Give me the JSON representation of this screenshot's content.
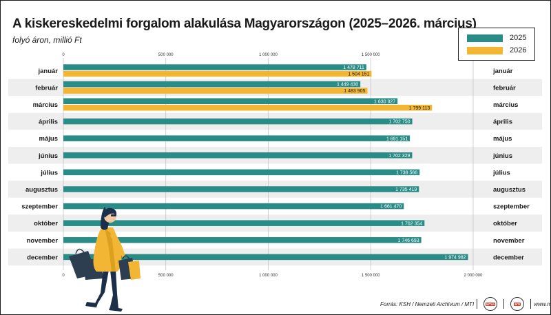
{
  "title": "A kiskereskedelmi forgalom alakulása Magyarországon (2025–2026. március)",
  "subtitle": "folyó áron, millió Ft",
  "colors": {
    "s2025": "#2a8c87",
    "s2026": "#f2b634",
    "stripe": "#eeeeee"
  },
  "footer": {
    "source": "Forrás: KSH / Nemzeti Archívum / MTI",
    "badge1": "MTVA",
    "badge2": "MTI",
    "site": "www.mti.hu"
  },
  "chart_data": {
    "type": "bar",
    "orientation": "horizontal",
    "categories": [
      "január",
      "február",
      "március",
      "április",
      "május",
      "június",
      "július",
      "augusztus",
      "szeptember",
      "október",
      "november",
      "december"
    ],
    "series": [
      {
        "name": "2025",
        "values": [
          1478711,
          1449430,
          1630927,
          1702750,
          1691151,
          1702329,
          1738566,
          1735419,
          1661470,
          1762354,
          1746693,
          1974982
        ]
      },
      {
        "name": "2026",
        "values": [
          1504151,
          1483905,
          1799113,
          null,
          null,
          null,
          null,
          null,
          null,
          null,
          null,
          null
        ]
      }
    ],
    "value_labels": {
      "2025": [
        "1 478 711",
        "1 449 430",
        "1 630 927",
        "1 702 750",
        "1 691 151",
        "1 702 329",
        "1 738 566",
        "1 735 419",
        "1 661 470",
        "1 762 354",
        "1 746 693",
        "1 974 982"
      ],
      "2026": [
        "1 504 151",
        "1 483 905",
        "1 799 113"
      ]
    },
    "xlim": [
      0,
      2000000
    ],
    "xticks": [
      0,
      500000,
      1000000,
      1500000,
      2000000
    ],
    "xtick_labels_top": [
      "0",
      "500 000",
      "1 000 000",
      "1 500 000"
    ],
    "xtick_labels_bottom": [
      "0",
      "500 000",
      "1 000 000",
      "1 500 000",
      "2 000 000"
    ],
    "grid": true,
    "legend": "top-right"
  }
}
